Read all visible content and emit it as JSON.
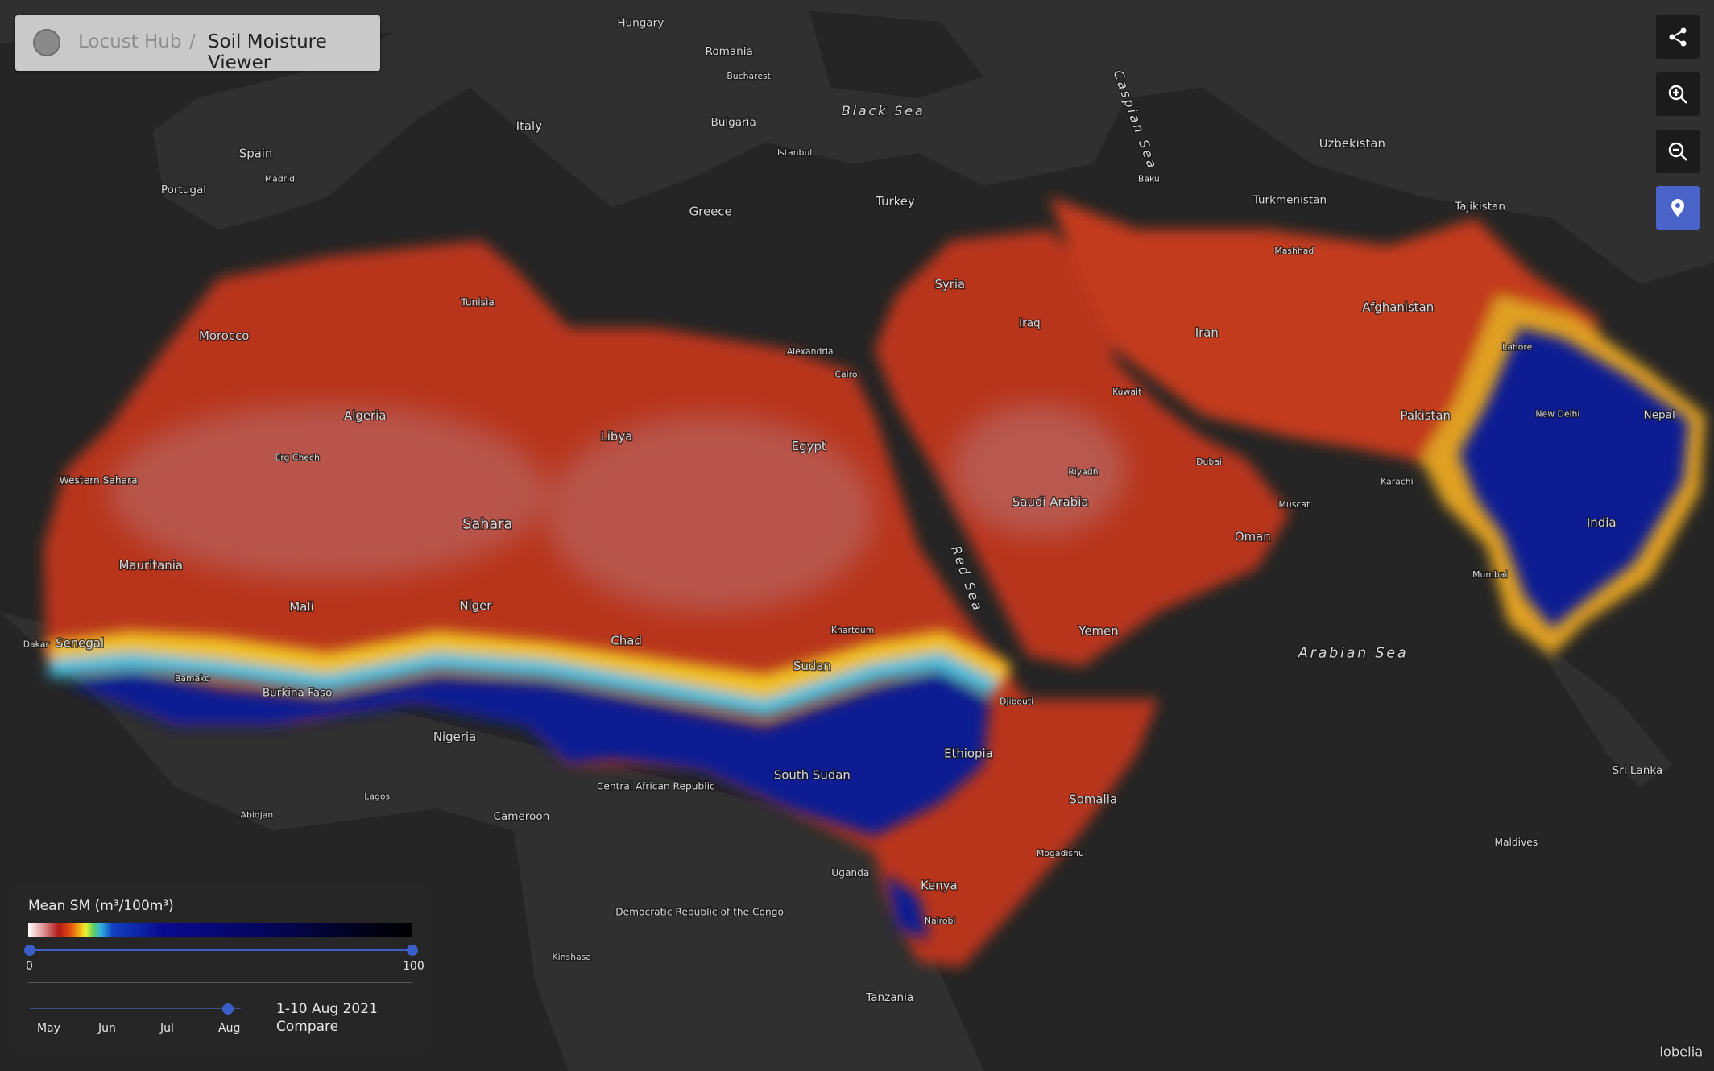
{
  "header": {
    "breadcrumb": "Locust Hub",
    "separator": "/",
    "title": "Soil Moisture Viewer"
  },
  "legend": {
    "title": "Mean SM (m³/100m³)",
    "min": 0,
    "max": 100
  },
  "timeline": {
    "months": [
      "May",
      "Jun",
      "Jul",
      "Aug"
    ],
    "period": "1-10 Aug 2021",
    "compare": "Compare"
  },
  "attribution": "lobelia",
  "map_labels": [
    "Morocco",
    "Algeria",
    "Libya",
    "Egypt",
    "Mauritania",
    "Mali",
    "Niger",
    "Chad",
    "Sudan",
    "Sahara",
    "Western Sahara",
    "Senegal",
    "Burkina Faso",
    "Nigeria",
    "Ethiopia",
    "South Sudan",
    "Somalia",
    "Kenya",
    "Saudi Arabia",
    "Yemen",
    "Oman",
    "Iraq",
    "Iran",
    "Syria",
    "Turkey",
    "Afghanistan",
    "Pakistan",
    "India",
    "Turkmenistan",
    "Uzbekistan",
    "Tajikistan",
    "Greece",
    "Italy",
    "Spain",
    "Portugal",
    "Bulgaria",
    "Romania",
    "Hungary",
    "Black Sea",
    "Caspian Sea",
    "Red Sea",
    "Arabian Sea",
    "Cameroon",
    "Central African Republic",
    "Democratic Republic of the Congo",
    "Uganda",
    "Tanzania",
    "Nepal",
    "Sri Lanka",
    "Maldives",
    "Cairo",
    "Riyadh",
    "Lahore",
    "New Delhi",
    "Karachi",
    "Mumbai",
    "Dubai",
    "Khartoum",
    "Mogadishu",
    "Nairobi",
    "Istanbul",
    "Alexandria",
    "Erg Chech",
    "Abidjan",
    "Lagos",
    "Djibouti",
    "Madrid",
    "Tunisia",
    "Bucharest",
    "Baku",
    "Kinshasa",
    "Muscat",
    "Bamako",
    "Dakar",
    "Kuwait",
    "Mashhad"
  ]
}
